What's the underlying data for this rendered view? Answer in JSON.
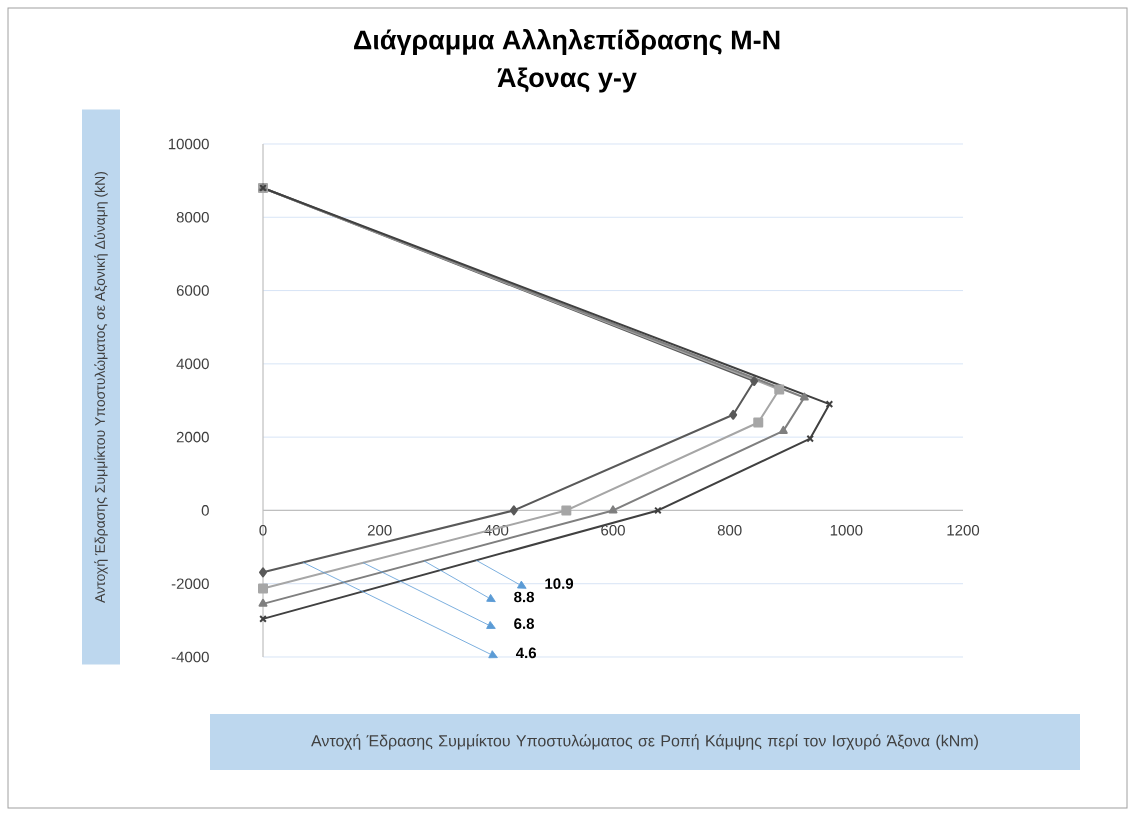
{
  "chart_data": {
    "type": "line",
    "title": "Διάγραμμα Αλληλεπίδρασης Μ-Ν",
    "subtitle": "Άξονας y-y",
    "xlabel": "Αντοχή Έδρασης Συμμίκτου Υποστυλώματος σε Ροπή Κάμψης περί τον Ισχυρό Άξονα (kNm)",
    "ylabel": "Αντοχή Έδρασης Συμμίκτου Υποστυλώματος σε Αξονική Δύναμη (kN)",
    "xlim": [
      0,
      1200
    ],
    "xticks": [
      0,
      200,
      400,
      600,
      800,
      1000,
      1200
    ],
    "ylim": [
      -4000,
      10000
    ],
    "yticks": [
      -4000,
      -2000,
      0,
      2000,
      4000,
      6000,
      8000,
      10000
    ],
    "grid": "y",
    "line_style": "solid",
    "annotations": [
      "10.9",
      "8.8",
      "6.8",
      "4.6"
    ],
    "series": [
      {
        "color": "#595959",
        "marker": "diamond",
        "x": [
          0,
          842,
          806,
          430,
          0
        ],
        "values": [
          8800,
          3530,
          2610,
          0,
          -1690
        ]
      },
      {
        "color": "#a6a6a6",
        "marker": "square",
        "x": [
          0,
          885,
          849,
          520,
          0
        ],
        "values": [
          8800,
          3300,
          2400,
          0,
          -2130
        ]
      },
      {
        "color": "#7f7f7f",
        "marker": "triangle",
        "x": [
          0,
          928,
          892,
          600,
          0
        ],
        "values": [
          8800,
          3080,
          2170,
          0,
          -2550
        ]
      },
      {
        "color": "#404040",
        "marker": "cross",
        "x": [
          0,
          971,
          938,
          677,
          0
        ],
        "values": [
          8800,
          2900,
          1960,
          0,
          -2960
        ]
      }
    ]
  }
}
